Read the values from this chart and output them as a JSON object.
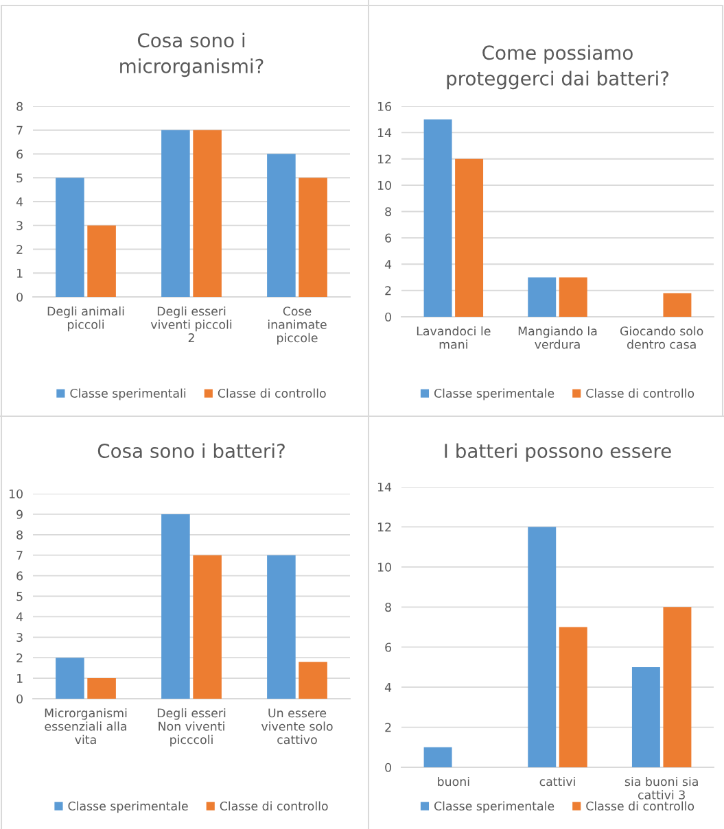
{
  "chart_data": [
    {
      "type": "bar",
      "title": "Cosa sono i\nmicrorganismi?",
      "categories": [
        "Degli animali\npiccoli",
        "Degli esseri\nviventi piccoli\n2",
        "Cose\ninanimate\npiccole"
      ],
      "series": [
        {
          "name": "Classe sperimentali",
          "color": "#5b9bd5",
          "values": [
            5,
            7,
            6
          ]
        },
        {
          "name": "Classe di controllo",
          "color": "#ed7d31",
          "values": [
            3,
            7,
            5
          ]
        }
      ],
      "ylim": [
        0,
        8
      ],
      "yticks": [
        0,
        1,
        2,
        3,
        4,
        5,
        6,
        7,
        8
      ],
      "grid": "y",
      "legend": "bottom"
    },
    {
      "type": "bar",
      "title": "Come possiamo\nproteggerci dai batteri?",
      "categories": [
        "Lavandoci le\nmani",
        "Mangiando la\nverdura",
        "Giocando solo\ndentro casa"
      ],
      "series": [
        {
          "name": "Classe sperimentale",
          "color": "#5b9bd5",
          "values": [
            15,
            3,
            null
          ]
        },
        {
          "name": "Classe di controllo",
          "color": "#ed7d31",
          "values": [
            12,
            3,
            1.8
          ]
        }
      ],
      "ylim": [
        0,
        16
      ],
      "yticks": [
        0,
        2,
        4,
        6,
        8,
        10,
        12,
        14,
        16
      ],
      "grid": "y",
      "legend": "bottom"
    },
    {
      "type": "bar",
      "title": "Cosa sono i batteri?",
      "categories": [
        "Microrganismi\nessenziali alla\nvita",
        "Degli esseri\nNon viventi\npicccoli",
        "Un essere\nvivente solo\ncattivo"
      ],
      "series": [
        {
          "name": "Classe sperimentale",
          "color": "#5b9bd5",
          "values": [
            2,
            9,
            7
          ]
        },
        {
          "name": "Classe di controllo",
          "color": "#ed7d31",
          "values": [
            1,
            7,
            1.8
          ]
        }
      ],
      "ylim": [
        0,
        10
      ],
      "yticks": [
        0,
        1,
        2,
        3,
        4,
        5,
        6,
        7,
        8,
        9,
        10
      ],
      "grid": "y",
      "legend": "bottom"
    },
    {
      "type": "bar",
      "title": "I batteri possono essere",
      "categories": [
        "buoni",
        "cattivi",
        "sia buoni sia\ncattivi 3"
      ],
      "series": [
        {
          "name": "Classe sperimentale",
          "color": "#5b9bd5",
          "values": [
            1,
            12,
            5
          ]
        },
        {
          "name": "Classe di controllo",
          "color": "#ed7d31",
          "values": [
            null,
            7,
            8
          ]
        }
      ],
      "ylim": [
        0,
        14
      ],
      "yticks": [
        0,
        2,
        4,
        6,
        8,
        10,
        12,
        14
      ],
      "grid": "y",
      "legend": "bottom"
    }
  ]
}
